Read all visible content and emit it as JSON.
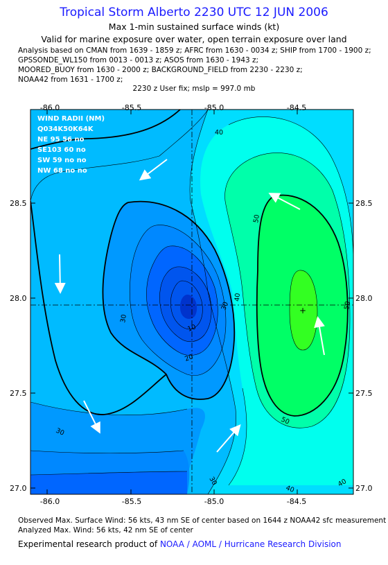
{
  "header": {
    "title": "Tropical Storm Alberto 2230 UTC 12 JUN 2006",
    "subtitle": "Max 1-min sustained surface winds (kt)",
    "valid_line": "Valid for marine exposure over water, open terrain exposure over land",
    "analysis_lines": [
      "Analysis based on  CMAN from 1639 - 1859 z;  AFRC from 1630 - 0034 z;  SHIP from 1700 - 1900 z;",
      "GPSSONDE_WL150 from 0013 - 0013 z;  ASOS from 1630 - 1943 z;",
      "MOORED_BUOY from 1630 - 2000 z;  BACKGROUND_FIELD from 2230 - 2230 z;",
      "NOAA42 from 1631 - 1700 z;"
    ],
    "fix_line": "2230 z User fix; mslp = 997.0 mb"
  },
  "map": {
    "lon_ticks": [
      "-86.0",
      "-85.5",
      "-85.0",
      "-84.5"
    ],
    "lat_ticks": [
      "28.5",
      "28.0",
      "27.5",
      "27.0"
    ],
    "wind_radii": {
      "title": "WIND RADII (NM)",
      "header": "Q034K50K64K",
      "rows": [
        "NE 95 56 no",
        "SE103 60 no",
        "SW 59 no no",
        "NW 68 no no"
      ]
    },
    "contour_labels": [
      "40",
      "50",
      "50",
      "50",
      "30",
      "30",
      "40",
      "30",
      "20",
      "10",
      "30",
      "40",
      "40"
    ],
    "colors": {
      "lvl0": "#0033cc",
      "lvl10": "#0055ee",
      "lvl15": "#0066ff",
      "lvl20": "#0088ff",
      "lvl25": "#0099ff",
      "lvl30": "#00bbff",
      "lvl35": "#00ddff",
      "lvl40": "#00ffee",
      "lvl45": "#00ffaa",
      "lvl50": "#00ff66",
      "lvl55": "#33ff22"
    }
  },
  "footer": {
    "observed": "Observed Max. Surface Wind: 56 kts, 43 nm SE of center based on 1644 z NOAA42 sfc measurement",
    "analyzed": "Analyzed Max. Wind: 56 kts, 42 nm SE of center",
    "credit_prefix": "Experimental research product of",
    "credit_org": "NOAA / AOML / Hurricane Research Division"
  }
}
